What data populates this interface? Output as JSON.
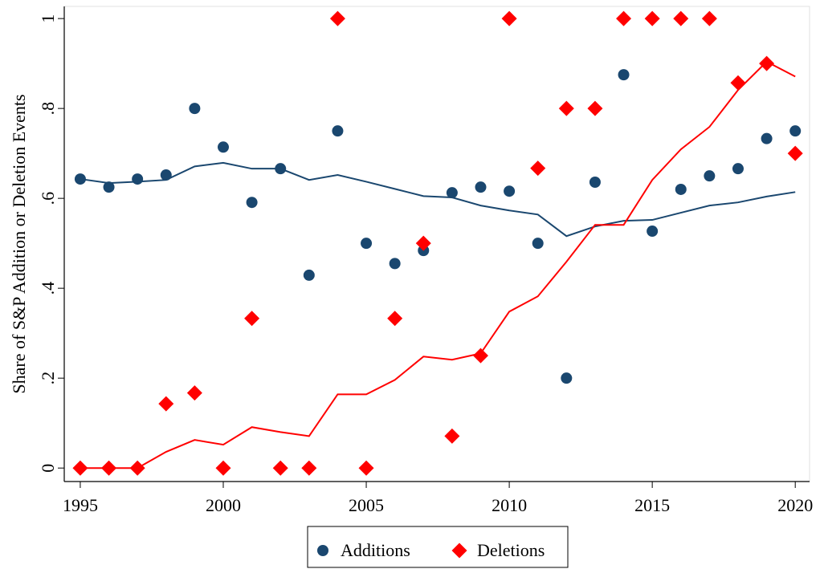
{
  "chart_data": {
    "type": "scatter",
    "y_label": "Share of S&P Addition or Deletion Events",
    "x": [
      1995,
      1996,
      1997,
      1998,
      1999,
      2000,
      2001,
      2002,
      2003,
      2004,
      2005,
      2006,
      2007,
      2008,
      2009,
      2010,
      2011,
      2012,
      2013,
      2014,
      2015,
      2016,
      2017,
      2018,
      2019,
      2020
    ],
    "series": [
      {
        "name": "Additions",
        "color": "#1a476f",
        "marker": "circle",
        "values": [
          0.643,
          0.625,
          0.643,
          0.652,
          0.8,
          0.714,
          0.591,
          0.666,
          0.429,
          0.75,
          0.5,
          0.455,
          0.484,
          0.6125,
          0.625,
          0.616,
          0.5,
          0.2,
          0.636,
          0.875,
          0.527,
          0.62,
          0.65,
          0.666,
          0.733,
          0.75
        ],
        "fit_values": [
          0.643,
          0.634,
          0.637,
          0.641,
          0.671,
          0.679,
          0.666,
          0.666,
          0.641,
          0.652,
          0.637,
          0.621,
          0.605,
          0.602,
          0.584,
          0.573,
          0.564,
          0.516,
          0.5375,
          0.55,
          0.552,
          0.568,
          0.584,
          0.591,
          0.604,
          0.614
        ]
      },
      {
        "name": "Deletions",
        "color": "#ff0000",
        "marker": "diamond",
        "values": [
          0,
          0,
          0,
          0.143,
          0.167,
          0,
          0.333,
          0,
          0,
          1,
          0,
          0.333,
          0.5,
          0.071,
          0.25,
          1,
          0.667,
          0.8,
          0.8,
          1,
          1,
          1,
          1,
          0.857,
          0.9,
          0.7
        ],
        "fit_values": [
          0,
          0,
          0,
          0.036,
          0.0625,
          0.052,
          0.091,
          0.08,
          0.071,
          0.164,
          0.164,
          0.196,
          0.248,
          0.241,
          0.255,
          0.348,
          0.382,
          0.459,
          0.541,
          0.541,
          0.641,
          0.709,
          0.759,
          0.841,
          0.904,
          0.871
        ]
      }
    ],
    "xlim": [
      1994.44,
      2020.5
    ],
    "ylim": [
      -0.03,
      1.027
    ],
    "xticks": [
      1995,
      2000,
      2005,
      2010,
      2015,
      2020
    ],
    "yticks": [
      0,
      {
        "value": 0.2,
        "label": ".2"
      },
      {
        "value": 0.4,
        "label": ".4"
      },
      {
        "value": 0.6,
        "label": ".6"
      },
      {
        "value": 0.8,
        "label": ".8"
      },
      1
    ],
    "grid": false,
    "legend": "bottom"
  }
}
